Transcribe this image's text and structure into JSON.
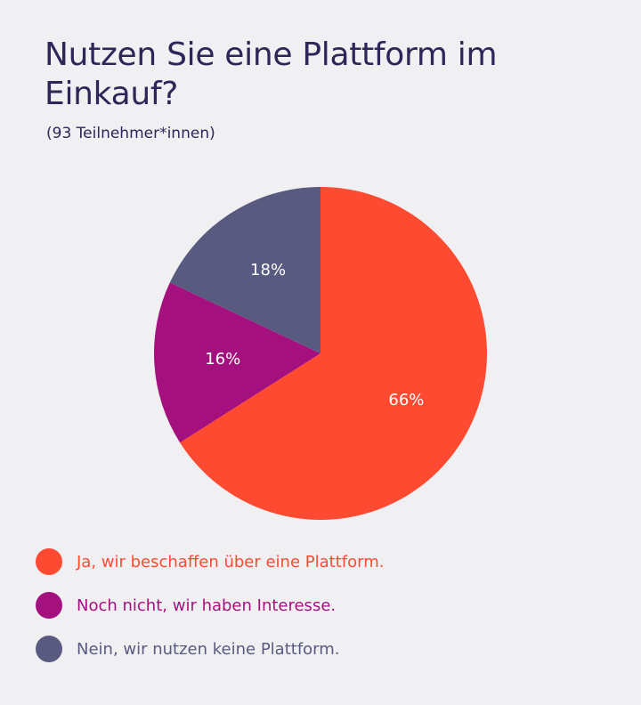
{
  "title": "Nutzen Sie eine Plattform im Einkauf?",
  "subtitle": "(93 Teilnehmer*innen)",
  "chart_data": {
    "type": "pie",
    "title": "Nutzen Sie eine Plattform im Einkauf?",
    "subtitle": "(93 Teilnehmer*innen)",
    "start_angle_deg": 0,
    "direction": "clockwise",
    "slices": [
      {
        "label": "Ja, wir beschaffen über eine Plattform.",
        "value": 66,
        "display": "66%",
        "color": "#ff4a32"
      },
      {
        "label": "Noch nicht, wir haben Interesse.",
        "value": 16,
        "display": "16%",
        "color": "#a4117f"
      },
      {
        "label": "Nein, wir nutzen keine Plattform.",
        "value": 18,
        "display": "18%",
        "color": "#595a80"
      }
    ],
    "legend_position": "bottom-left"
  }
}
